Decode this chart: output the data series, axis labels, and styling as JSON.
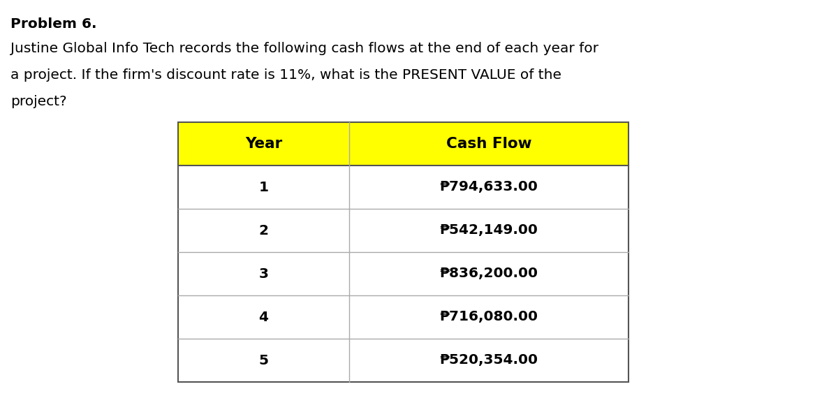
{
  "title_line1": "Problem 6.",
  "title_line2": "Justine Global Info Tech records the following cash flows at the end of each year for",
  "title_line3": "a project. If the firm's discount rate is 11%, what is the PRESENT VALUE of the",
  "title_line4": "project?",
  "col_headers": [
    "Year",
    "Cash Flow"
  ],
  "years": [
    "1",
    "2",
    "3",
    "4",
    "5"
  ],
  "cash_flows": [
    "₱794,633.00",
    "₱542,149.00",
    "₱836,200.00",
    "₱716,080.00",
    "₱520,354.00"
  ],
  "header_bg": "#FFFF00",
  "header_text": "#000000",
  "row_bg": "#FFFFFF",
  "row_text": "#000000",
  "border_color": "#AAAAAA",
  "outer_border_color": "#555555",
  "text_fontsize": 14.5,
  "header_fontsize": 15.5,
  "problem_fontsize": 14.5,
  "fig_width": 12.0,
  "fig_height": 5.9,
  "dpi": 100
}
